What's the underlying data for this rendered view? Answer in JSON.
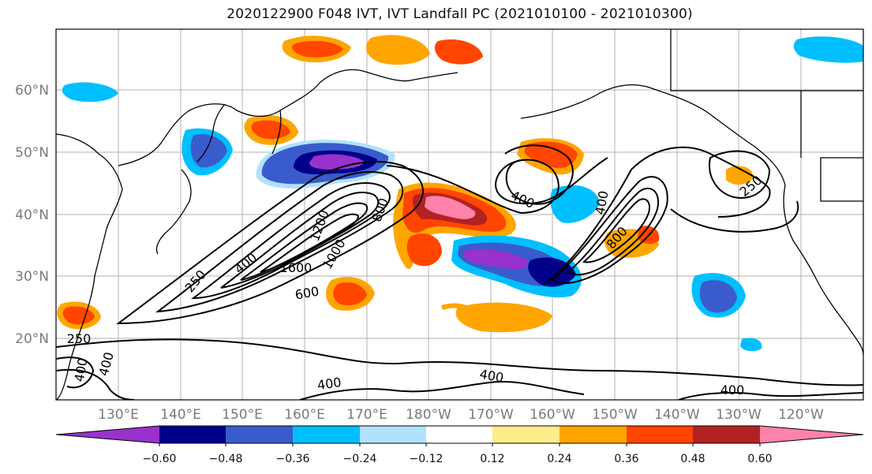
{
  "title": "2020122900 F048 IVT, IVT Landfall PC (2021010100 - 2021010300)",
  "map": {
    "lat_labels": [
      "60°N",
      "50°N",
      "40°N",
      "30°N",
      "20°N"
    ],
    "lon_labels": [
      "130°E",
      "140°E",
      "150°E",
      "160°E",
      "170°E",
      "180°W",
      "170°W",
      "160°W",
      "150°W",
      "140°W",
      "130°W",
      "120°W"
    ],
    "contour_labels": [
      "250",
      "400",
      "600",
      "800",
      "1000",
      "1200",
      "1600",
      "400",
      "800",
      "400",
      "250",
      "400",
      "400",
      "400",
      "400",
      "250",
      "400"
    ]
  },
  "colorbar": {
    "colors": [
      "#9932cc",
      "#00008b",
      "#3a5bcc",
      "#00bfff",
      "#b0e2ff",
      "#ffffff",
      "#ffec8b",
      "#ffa500",
      "#ff4500",
      "#b22222",
      "#ff82ab"
    ],
    "tick_labels": [
      "−0.60",
      "−0.48",
      "−0.36",
      "−0.24",
      "−0.12",
      "0.12",
      "0.24",
      "0.36",
      "0.48",
      "0.60"
    ]
  }
}
